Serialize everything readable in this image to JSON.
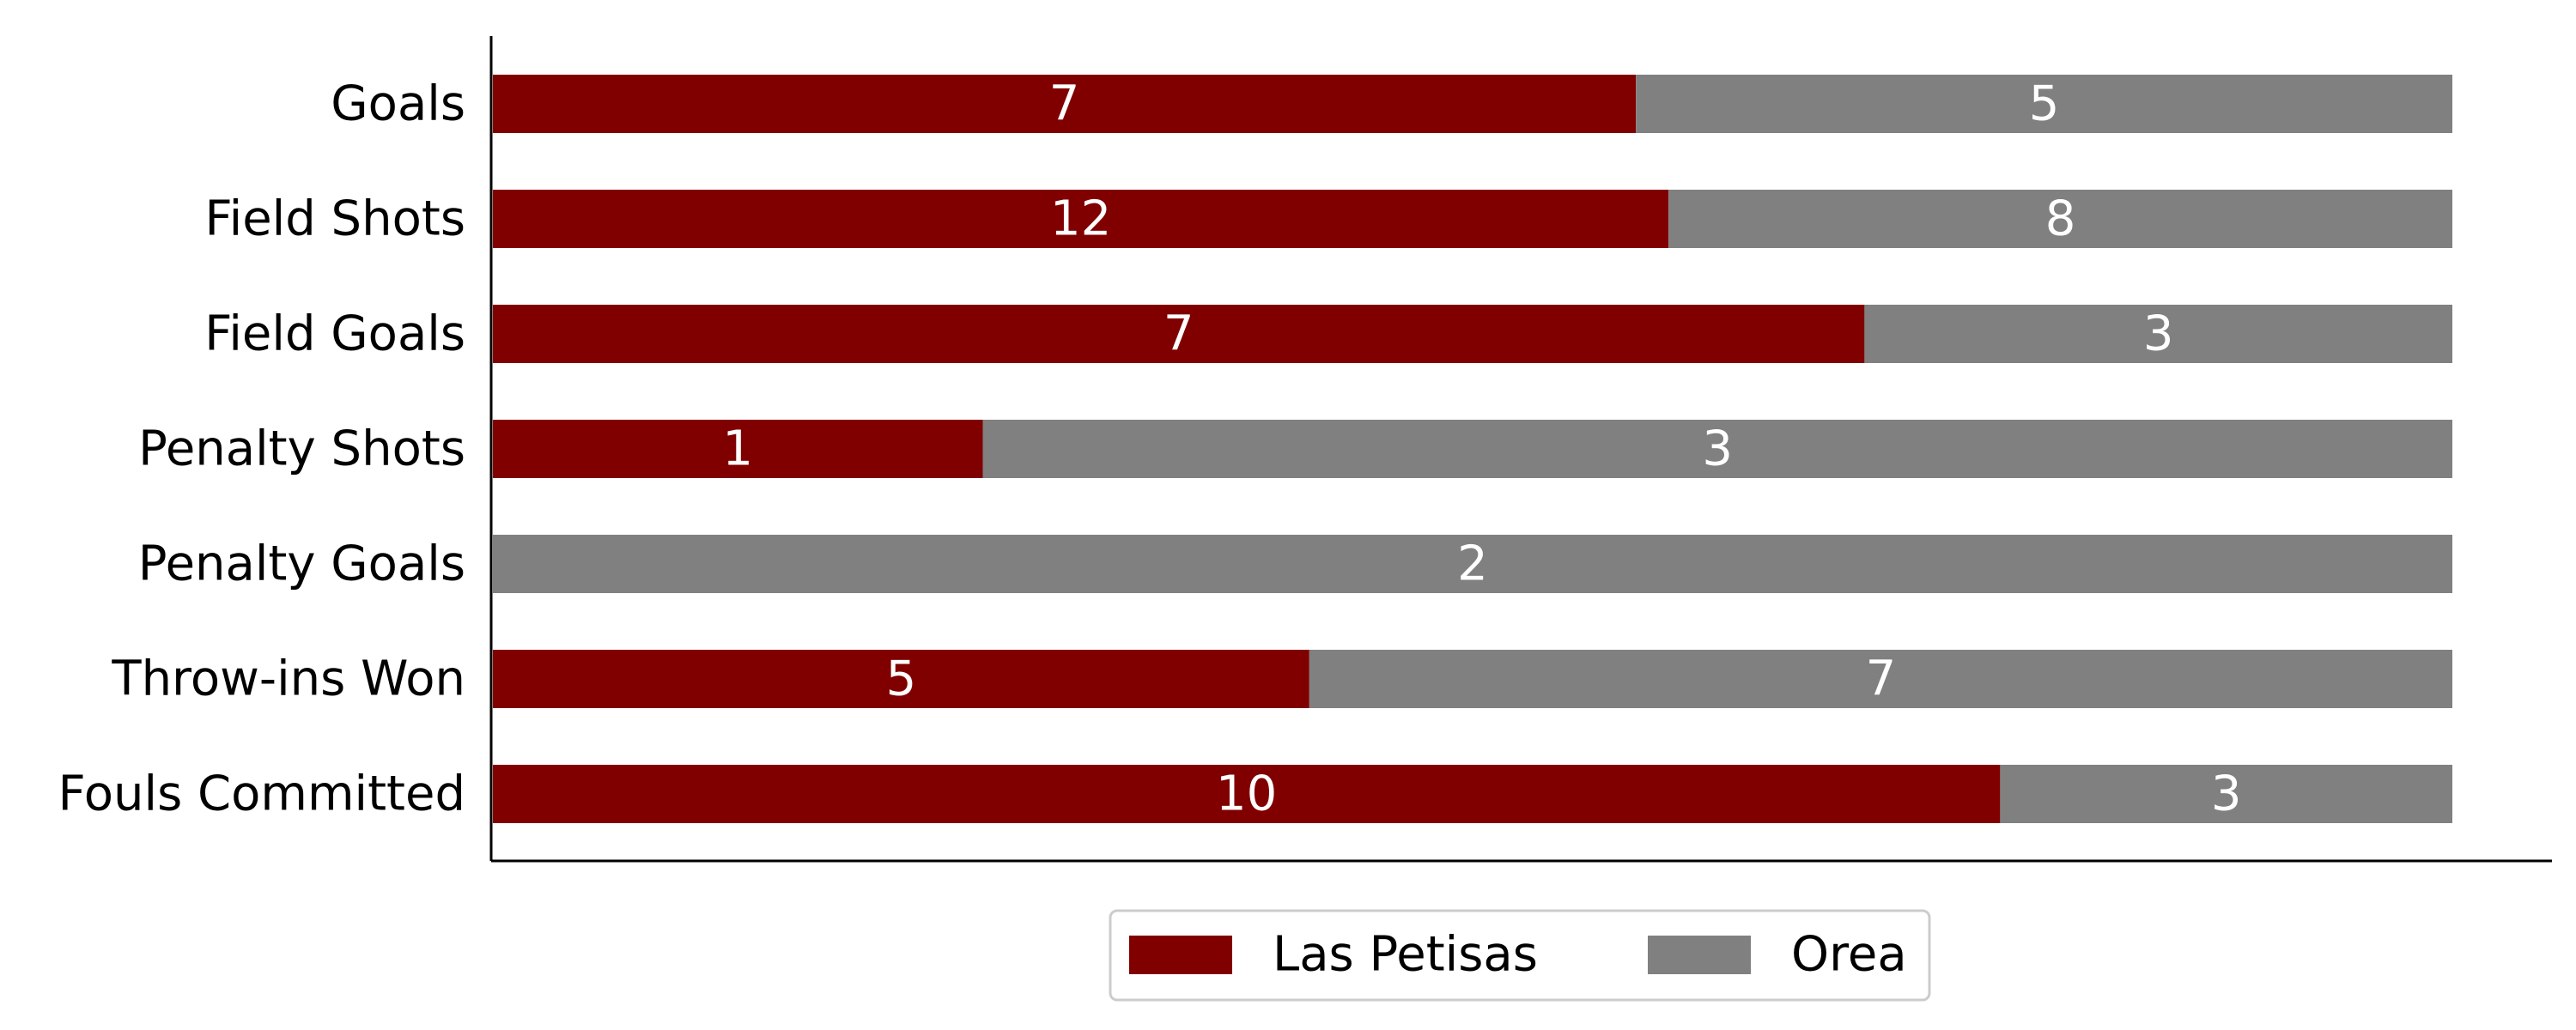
{
  "chart_data": {
    "type": "bar",
    "orientation": "horizontal",
    "stacking": "percent",
    "categories": [
      "Goals",
      "Field Shots",
      "Field Goals",
      "Penalty Shots",
      "Penalty Goals",
      "Throw-ins Won",
      "Fouls Committed"
    ],
    "series": [
      {
        "name": "Las Petisas",
        "color": "#800000",
        "values": [
          7,
          12,
          7,
          1,
          0,
          5,
          10
        ]
      },
      {
        "name": "Orea",
        "color": "#808080",
        "values": [
          5,
          8,
          3,
          3,
          2,
          7,
          3
        ]
      }
    ],
    "legend": {
      "position": "bottom-center"
    },
    "grid": false,
    "x_axis_ticks": false
  }
}
